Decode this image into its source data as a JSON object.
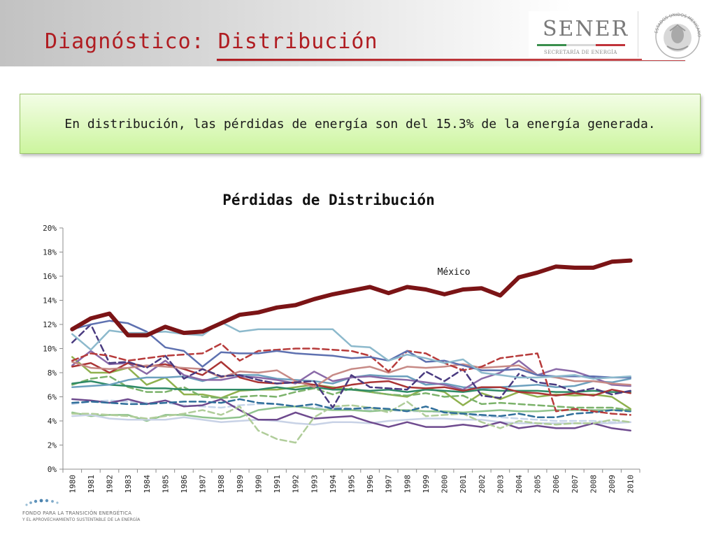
{
  "header": {
    "title": "Diagnóstico: Distribución",
    "logo_name": "SENER",
    "logo_subtitle": "SECRETARÍA DE ENERGÍA",
    "seal_text": "ESTADOS UNIDOS MEXICANOS",
    "accent": "#b01d22"
  },
  "banner": {
    "text": "En distribución, las pérdidas de energía son del 15.3% de la energía generada."
  },
  "footer": {
    "org_line1": "FONDO PARA LA TRANSICIÓN ENERGÉTICA",
    "org_line2": "Y EL APROVECHAMIENTO SUSTENTABLE DE LA ENERGÍA"
  },
  "chart_data": {
    "type": "line",
    "title": "Pérdidas de Distribución",
    "xlabel": "",
    "ylabel": "",
    "ylim": [
      0,
      20
    ],
    "y_ticks": [
      "0%",
      "2%",
      "4%",
      "6%",
      "8%",
      "10%",
      "12%",
      "14%",
      "16%",
      "18%",
      "20%"
    ],
    "grid": false,
    "legend": "none",
    "categories": [
      "1980",
      "1981",
      "1982",
      "1983",
      "1984",
      "1985",
      "1986",
      "1987",
      "1988",
      "1989",
      "1990",
      "1991",
      "1992",
      "1993",
      "1994",
      "1995",
      "1996",
      "1997",
      "1998",
      "1999",
      "2000",
      "2001",
      "2002",
      "2003",
      "2004",
      "2005",
      "2006",
      "2007",
      "2008",
      "2009",
      "2010"
    ],
    "annotation": {
      "text": "México",
      "series": 0
    },
    "series": [
      {
        "color": "#7b1416",
        "dash": false,
        "width": 6,
        "values": [
          11.6,
          12.5,
          12.9,
          11.1,
          11.1,
          11.8,
          11.3,
          11.4,
          12.1,
          12.8,
          13.0,
          13.4,
          13.6,
          14.1,
          14.5,
          14.8,
          15.1,
          14.6,
          15.1,
          14.9,
          14.5,
          14.9,
          15.0,
          14.4,
          15.9,
          16.3,
          16.8,
          16.7,
          16.7,
          17.2,
          17.3
        ]
      },
      {
        "color": "#8cb9cc",
        "dash": false,
        "width": 2.5,
        "values": [
          11.2,
          9.9,
          11.5,
          11.3,
          11.3,
          11.4,
          11.2,
          11.1,
          12.2,
          11.4,
          11.6,
          11.6,
          11.6,
          11.6,
          11.6,
          10.2,
          10.1,
          9.0,
          9.5,
          9.2,
          8.8,
          9.1,
          8.0,
          7.8,
          7.6,
          7.6,
          7.7,
          7.8,
          7.5,
          7.6,
          7.7
        ]
      },
      {
        "color": "#5e71b0",
        "dash": false,
        "width": 2.5,
        "values": [
          11.6,
          12.0,
          12.3,
          12.1,
          11.4,
          10.1,
          9.8,
          8.5,
          9.7,
          9.6,
          9.6,
          9.8,
          9.6,
          9.5,
          9.4,
          9.2,
          9.3,
          9.0,
          9.8,
          8.9,
          9.0,
          8.6,
          8.2,
          8.2,
          8.3,
          7.8,
          7.7,
          7.7,
          7.7,
          7.6,
          7.6
        ]
      },
      {
        "color": "#b73b3b",
        "dash": true,
        "width": 2.5,
        "values": [
          9.0,
          9.6,
          9.4,
          9.0,
          9.2,
          9.4,
          9.5,
          9.6,
          10.4,
          9.0,
          9.8,
          9.9,
          10.0,
          10.0,
          9.9,
          9.8,
          9.4,
          8.1,
          9.8,
          9.6,
          8.8,
          8.2,
          8.5,
          9.2,
          9.4,
          9.6,
          4.8,
          5.0,
          4.8,
          4.6,
          4.5
        ]
      },
      {
        "color": "#4a3b80",
        "dash": true,
        "width": 2.5,
        "values": [
          10.5,
          12.0,
          8.8,
          8.9,
          8.4,
          9.4,
          7.5,
          8.3,
          7.7,
          7.8,
          7.4,
          7.1,
          7.2,
          7.3,
          5.1,
          7.8,
          6.8,
          6.7,
          6.6,
          8.1,
          7.3,
          8.3,
          6.1,
          5.9,
          7.9,
          7.2,
          7.0,
          6.4,
          6.7,
          6.2,
          6.5
        ]
      },
      {
        "color": "#c78a86",
        "dash": false,
        "width": 2.5,
        "values": [
          8.9,
          8.4,
          8.3,
          8.4,
          8.6,
          8.5,
          8.4,
          8.3,
          7.6,
          8.1,
          8.0,
          8.2,
          7.3,
          6.8,
          7.8,
          8.3,
          8.5,
          8.0,
          8.5,
          8.4,
          8.5,
          8.7,
          8.4,
          8.5,
          8.6,
          7.8,
          7.6,
          7.3,
          7.3,
          7.1,
          7.0
        ]
      },
      {
        "color": "#aa3434",
        "dash": false,
        "width": 2.5,
        "values": [
          8.5,
          8.8,
          8.0,
          8.8,
          8.5,
          8.7,
          8.3,
          7.8,
          8.9,
          7.6,
          7.2,
          7.1,
          7.2,
          7.0,
          6.7,
          7.0,
          7.2,
          7.3,
          6.8,
          6.7,
          6.8,
          6.5,
          6.8,
          6.8,
          6.4,
          6.3,
          6.1,
          6.3,
          6.1,
          6.6,
          6.3
        ]
      },
      {
        "color": "#8a6aa8",
        "dash": false,
        "width": 2.5,
        "values": [
          8.6,
          9.8,
          8.7,
          8.8,
          7.9,
          9.0,
          7.8,
          7.4,
          7.4,
          7.7,
          7.6,
          7.4,
          7.1,
          8.1,
          7.3,
          7.6,
          7.7,
          7.5,
          7.4,
          7.2,
          7.0,
          6.6,
          7.5,
          8.0,
          9.0,
          7.8,
          8.3,
          8.1,
          7.6,
          7.0,
          6.9
        ]
      },
      {
        "color": "#6ca0be",
        "dash": false,
        "width": 2.5,
        "values": [
          6.8,
          6.9,
          7.0,
          7.4,
          7.6,
          7.6,
          7.7,
          7.3,
          7.7,
          7.8,
          7.8,
          7.5,
          7.4,
          7.3,
          7.1,
          7.6,
          7.8,
          7.7,
          7.7,
          7.0,
          7.1,
          6.8,
          6.7,
          6.8,
          6.9,
          7.0,
          6.8,
          6.9,
          7.3,
          7.2,
          7.5
        ]
      },
      {
        "color": "#2f8a66",
        "dash": false,
        "width": 2.5,
        "values": [
          7.1,
          7.3,
          7.0,
          6.9,
          6.7,
          6.7,
          6.6,
          6.6,
          6.6,
          6.6,
          6.6,
          6.8,
          6.6,
          6.8,
          6.6,
          6.6,
          6.5,
          6.6,
          6.4,
          6.6,
          6.5,
          6.4,
          6.6,
          6.5,
          6.5,
          6.5,
          6.4,
          6.4,
          6.5,
          6.4,
          6.4
        ]
      },
      {
        "color": "#7bb26a",
        "dash": true,
        "width": 2.5,
        "values": [
          7.0,
          7.5,
          7.7,
          6.8,
          6.4,
          6.4,
          6.8,
          6.0,
          5.9,
          6.0,
          6.1,
          6.0,
          6.4,
          6.7,
          6.2,
          6.7,
          6.4,
          6.2,
          6.1,
          6.3,
          6.0,
          6.1,
          5.4,
          5.5,
          5.4,
          5.3,
          5.2,
          5.1,
          5.1,
          5.1,
          4.9
        ]
      },
      {
        "color": "#8fb14e",
        "dash": false,
        "width": 2.5,
        "values": [
          9.3,
          8.0,
          8.0,
          8.4,
          7.0,
          7.6,
          6.2,
          6.2,
          5.9,
          6.5,
          6.6,
          6.6,
          6.8,
          7.0,
          6.8,
          6.6,
          6.4,
          6.2,
          6.0,
          6.7,
          6.4,
          5.3,
          6.3,
          5.8,
          6.4,
          6.0,
          6.2,
          6.1,
          6.2,
          6.0,
          5.0
        ]
      },
      {
        "color": "#2f6e9a",
        "dash": true,
        "width": 2.5,
        "values": [
          5.5,
          5.6,
          5.5,
          5.4,
          5.4,
          5.5,
          5.6,
          5.6,
          5.5,
          5.8,
          5.5,
          5.4,
          5.2,
          5.4,
          5.0,
          5.0,
          5.1,
          5.0,
          4.8,
          5.2,
          4.7,
          4.6,
          4.5,
          4.4,
          4.6,
          4.3,
          4.3,
          4.6,
          4.7,
          4.9,
          4.8
        ]
      },
      {
        "color": "#b0cd9a",
        "dash": true,
        "width": 2.5,
        "values": [
          4.6,
          4.6,
          4.5,
          4.4,
          4.2,
          4.4,
          4.6,
          4.9,
          4.5,
          5.2,
          3.2,
          2.5,
          2.2,
          4.3,
          5.2,
          5.3,
          5.1,
          4.7,
          5.6,
          4.4,
          4.5,
          4.6,
          3.9,
          3.4,
          4.0,
          3.8,
          3.7,
          3.8,
          3.8,
          4.1,
          3.9
        ]
      },
      {
        "color": "#6e4a8e",
        "dash": false,
        "width": 2.5,
        "values": [
          5.8,
          5.7,
          5.5,
          5.8,
          5.4,
          5.7,
          5.2,
          5.3,
          5.8,
          4.9,
          4.1,
          4.1,
          4.7,
          4.2,
          4.3,
          4.4,
          3.9,
          3.5,
          3.9,
          3.5,
          3.5,
          3.7,
          3.5,
          3.9,
          3.4,
          3.6,
          3.4,
          3.4,
          3.8,
          3.4,
          3.2
        ]
      },
      {
        "color": "#c8d2e6",
        "dash": false,
        "width": 2.5,
        "values": [
          4.4,
          4.5,
          4.2,
          4.1,
          4.1,
          4.1,
          4.3,
          4.1,
          3.9,
          4.0,
          4.1,
          4.0,
          3.8,
          3.7,
          3.9,
          3.9,
          3.8,
          4.0,
          4.1,
          4.2,
          4.2,
          4.1,
          4.1,
          3.9,
          3.8,
          3.8,
          3.8,
          3.8,
          3.8,
          3.8,
          3.9
        ]
      },
      {
        "color": "#8fc38d",
        "dash": false,
        "width": 2.5,
        "values": [
          4.7,
          4.4,
          4.5,
          4.5,
          4.0,
          4.5,
          4.5,
          4.3,
          4.2,
          4.3,
          4.9,
          5.1,
          5.2,
          5.0,
          4.9,
          4.9,
          4.8,
          4.9,
          4.9,
          4.8,
          4.8,
          4.7,
          4.8,
          4.9,
          4.8,
          4.8,
          4.9,
          4.9,
          4.9,
          4.9,
          4.9
        ]
      },
      {
        "color": "#c7d6ea",
        "dash": true,
        "width": 2.5,
        "values": [
          5.4,
          5.6,
          5.7,
          5.6,
          5.5,
          5.5,
          5.3,
          5.2,
          5.1,
          5.3,
          5.4,
          5.4,
          5.2,
          5.1,
          5.2,
          5.0,
          4.9,
          4.9,
          4.8,
          4.8,
          4.7,
          4.6,
          4.4,
          4.3,
          4.2,
          4.1,
          4.0,
          4.0,
          4.0,
          3.9,
          3.9
        ]
      }
    ]
  }
}
